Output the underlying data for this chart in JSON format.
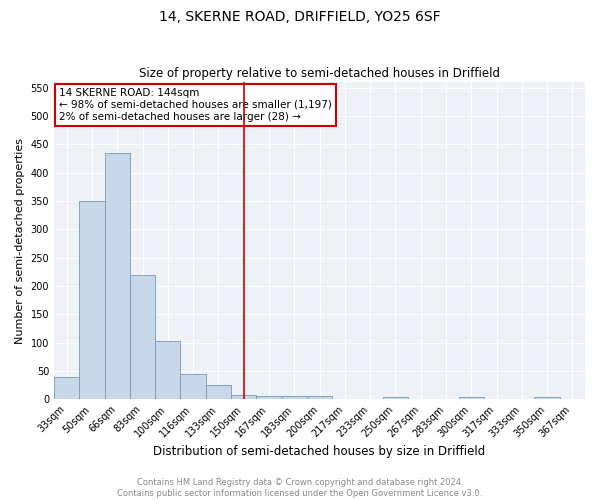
{
  "title": "14, SKERNE ROAD, DRIFFIELD, YO25 6SF",
  "subtitle": "Size of property relative to semi-detached houses in Driffield",
  "xlabel": "Distribution of semi-detached houses by size in Driffield",
  "ylabel": "Number of semi-detached properties",
  "bar_labels": [
    "33sqm",
    "50sqm",
    "66sqm",
    "83sqm",
    "100sqm",
    "116sqm",
    "133sqm",
    "150sqm",
    "167sqm",
    "183sqm",
    "200sqm",
    "217sqm",
    "233sqm",
    "250sqm",
    "267sqm",
    "283sqm",
    "300sqm",
    "317sqm",
    "333sqm",
    "350sqm",
    "367sqm"
  ],
  "bar_values": [
    40,
    350,
    435,
    220,
    102,
    44,
    25,
    8,
    6,
    5,
    5,
    0,
    0,
    4,
    0,
    0,
    3,
    0,
    0,
    4,
    0
  ],
  "bar_color": "#c8d8e8",
  "bar_edge_color": "#7799bb",
  "ylim": [
    0,
    560
  ],
  "yticks": [
    0,
    50,
    100,
    150,
    200,
    250,
    300,
    350,
    400,
    450,
    500,
    550
  ],
  "vline_x": 7.0,
  "vline_color": "#cc0000",
  "annot_line1": "14 SKERNE ROAD: 144sqm",
  "annot_line2": "← 98% of semi-detached houses are smaller (1,197)",
  "annot_line3": "2% of semi-detached houses are larger (28) →",
  "annotation_box_color": "#cc0000",
  "footnote_line1": "Contains HM Land Registry data © Crown copyright and database right 2024.",
  "footnote_line2": "Contains public sector information licensed under the Open Government Licence v3.0.",
  "bg_color": "#eef2f7",
  "grid_color": "#ffffff",
  "title_fontsize": 10,
  "subtitle_fontsize": 8.5,
  "xlabel_fontsize": 8.5,
  "ylabel_fontsize": 8,
  "tick_fontsize": 7,
  "annot_fontsize": 7.5,
  "footnote_fontsize": 6
}
